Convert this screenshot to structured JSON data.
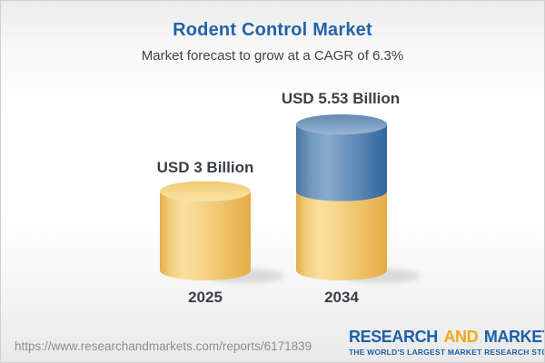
{
  "header": {
    "title": "Rodent Control Market",
    "subtitle": "Market forecast to grow at a CAGR of 6.3%",
    "title_color": "#2263a7"
  },
  "chart_data": {
    "type": "bar",
    "variant": "3d-stacked-cylinder",
    "categories": [
      "2025",
      "2034"
    ],
    "values": [
      3,
      5.53
    ],
    "value_labels": [
      "USD 3 Billion",
      "USD 5.53 Billion"
    ],
    "unit": "USD Billion",
    "cagr_percent": 6.3,
    "title": "Rodent Control Market",
    "ylim": [
      0,
      6
    ],
    "grid": false,
    "legend": false,
    "stacking_note": "2034 cylinder is stacked: yellow base segment equal to the 2025 level with a blue growth segment on top",
    "colors": {
      "base_segment_yellow": "#f2ca74",
      "growth_segment_blue": "#5e8bb7",
      "label_text": "#3a3f45"
    }
  },
  "footer": {
    "url": "https://www.researchandmarkets.com/reports/6171839",
    "logo": {
      "word1": "RESEARCH",
      "word2": "AND",
      "word3": "MARKETS",
      "tagline": "THE WORLD'S LARGEST MARKET RESEARCH STORE",
      "blue": "#1d5fa6",
      "orange": "#f2a71b"
    }
  }
}
